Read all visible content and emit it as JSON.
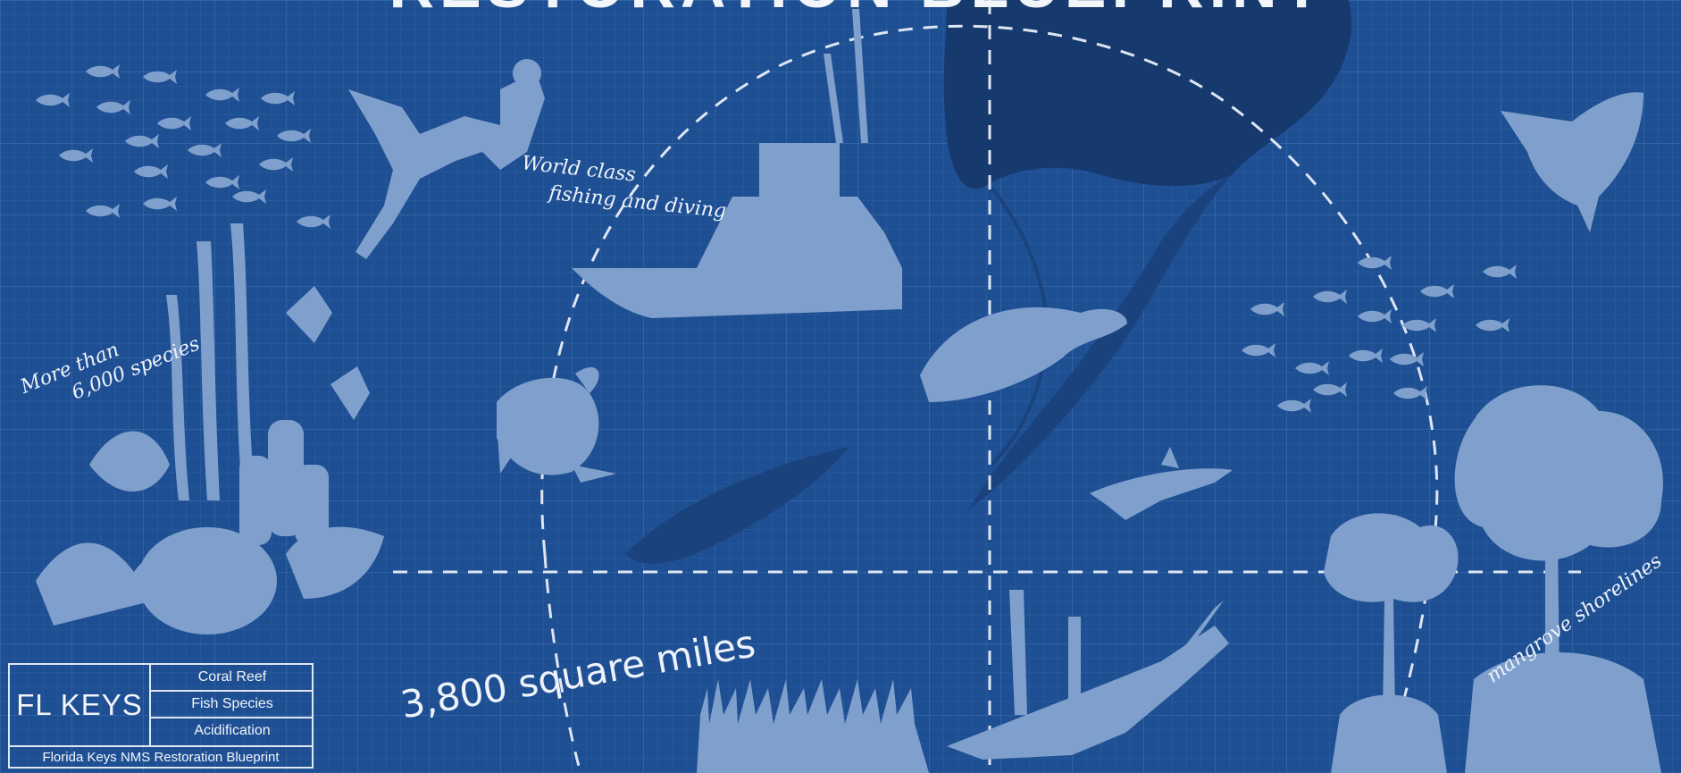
{
  "title": "RESTORATION BLUEPRINT",
  "labels": {
    "fishing_diving": [
      "World class",
      "fishing and diving"
    ],
    "species": [
      "More than",
      "6,000 species"
    ],
    "area": "3,800 square miles",
    "mangrove": "mangrove shorelines"
  },
  "legend": {
    "main": "FL KEYS",
    "rows": [
      "Coral Reef",
      "Fish Species",
      "Acidification"
    ],
    "footer": "Florida Keys NMS Restoration Blueprint"
  },
  "icons": [
    "fish-school-icon",
    "diver-icon",
    "boat-icon",
    "florida-map-icon",
    "sailfish-icon",
    "manatee-icon",
    "turtle-icon",
    "shark-icon",
    "coral-reef-icon",
    "seagrass-icon",
    "shipwreck-icon",
    "mangrove-icon"
  ],
  "colors": {
    "background": "#1f4f93",
    "silhouette": "#7fa0cc",
    "land": "#163a6d",
    "text": "#eef3fb"
  }
}
